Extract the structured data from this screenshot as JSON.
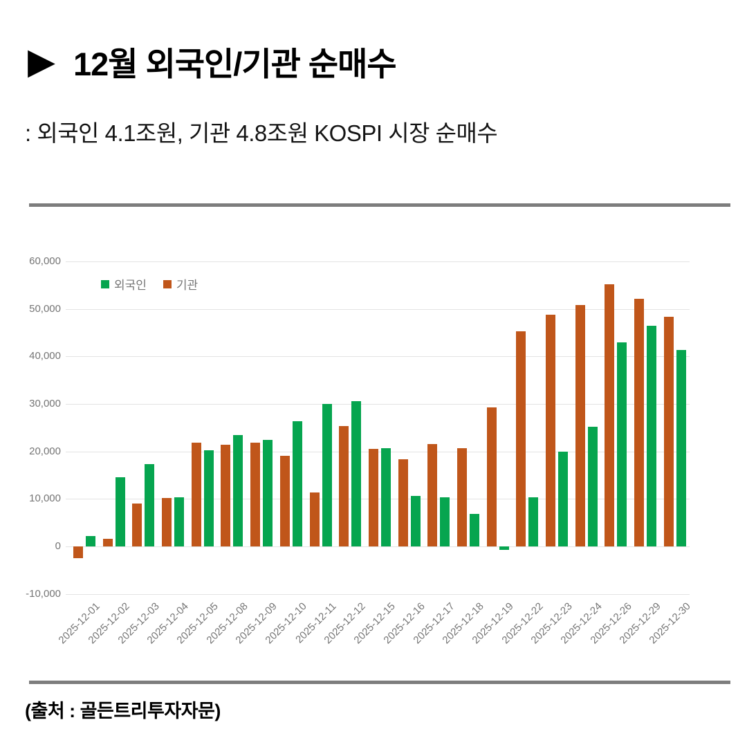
{
  "header": {
    "icon": "▶",
    "title": "12월 외국인/기관 순매수",
    "subtitle": ": 외국인 4.1조원, 기관 4.8조원 KOSPI 시장 순매수"
  },
  "footer": {
    "source": "(출처 : 골든트리투자자문)"
  },
  "chart_data": {
    "type": "bar",
    "title": "",
    "categories": [
      "2025-12-01",
      "2025-12-02",
      "2025-12-03",
      "2025-12-04",
      "2025-12-05",
      "2025-12-08",
      "2025-12-09",
      "2025-12-10",
      "2025-12-11",
      "2025-12-12",
      "2025-12-15",
      "2025-12-16",
      "2025-12-17",
      "2025-12-18",
      "2025-12-19",
      "2025-12-22",
      "2025-12-23",
      "2025-12-24",
      "2025-12-26",
      "2025-12-29",
      "2025-12-30"
    ],
    "series": [
      {
        "name": "외국인",
        "color": "#06a54f",
        "values": [
          2200,
          14500,
          17300,
          10300,
          20200,
          23400,
          22400,
          26300,
          30000,
          30500,
          20700,
          10600,
          10300,
          6800,
          -700,
          10400,
          20000,
          25200,
          43000,
          46400,
          41400
        ]
      },
      {
        "name": "기관",
        "color": "#c0561a",
        "values": [
          -2500,
          1600,
          9000,
          10200,
          21800,
          21400,
          21800,
          19000,
          11300,
          25400,
          20500,
          18400,
          21600,
          20600,
          29200,
          45200,
          48700,
          50800,
          55200,
          52100,
          48300
        ]
      }
    ],
    "bar_draw_order": [
      "기관",
      "외국인"
    ],
    "ylim": [
      -10000,
      60000
    ],
    "ytick_step": 10000,
    "ytick_labels": [
      "60,000",
      "50,000",
      "40,000",
      "30,000",
      "20,000",
      "10,000",
      "0",
      "-10,000"
    ],
    "legend_position": "top-left-inside",
    "grid": true,
    "axis_text_color": "#757575",
    "gridline_color": "#e3e3e3"
  }
}
